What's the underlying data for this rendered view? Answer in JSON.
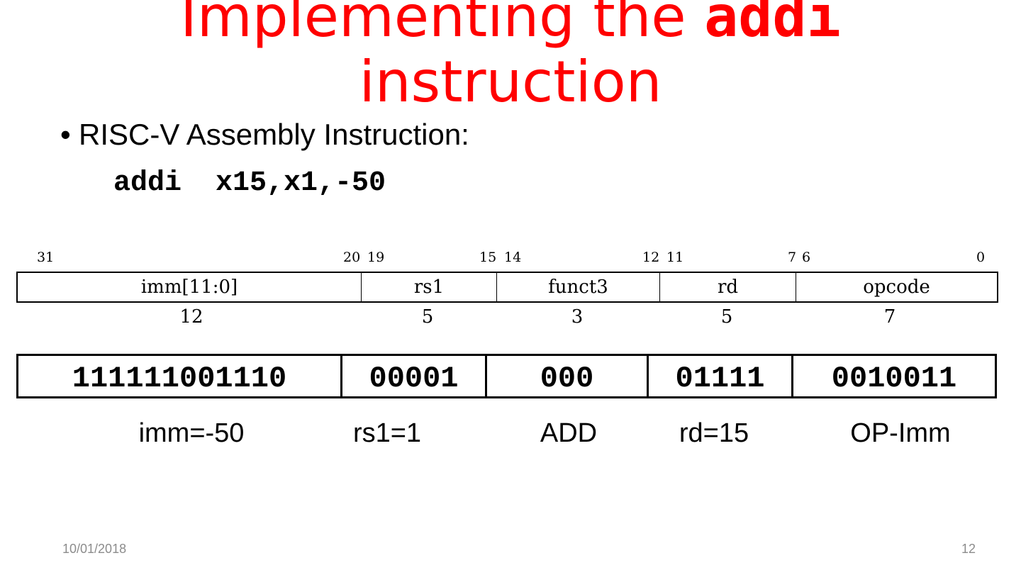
{
  "title": {
    "line1_prefix": "Implementing the ",
    "line1_code": "addi",
    "line2": "instruction"
  },
  "bullet": "RISC-V Assembly Instruction:",
  "assembly": "addi  x15,x1,-50",
  "format": {
    "bit_labels": [
      "31",
      "20",
      "19",
      "15",
      "14",
      "12",
      "11",
      "7",
      "6",
      "0"
    ],
    "fields": [
      "imm[11:0]",
      "rs1",
      "funct3",
      "rd",
      "opcode"
    ],
    "sizes": [
      "12",
      "5",
      "3",
      "5",
      "7"
    ]
  },
  "encoding": {
    "bits": [
      "111111001110",
      "00001",
      "000",
      "01111",
      "0010011"
    ],
    "meanings": [
      "imm=-50",
      "rs1=1",
      "ADD",
      "rd=15",
      "OP-Imm"
    ]
  },
  "footer": {
    "date": "10/01/2018",
    "page": "12"
  },
  "colors": {
    "title": "#ff0000"
  }
}
